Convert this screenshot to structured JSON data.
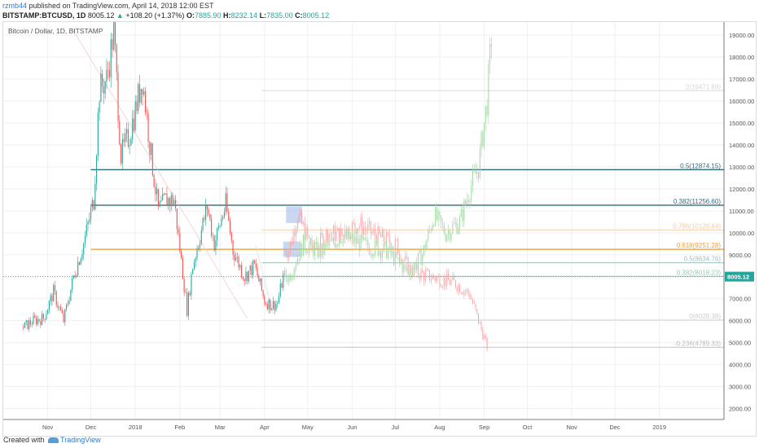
{
  "header": {
    "user": "rzmb44",
    "published_text": "published on TradingView.com, April 14, 2018 12:00 EST",
    "symbol": "BITSTAMP:BTCUSD, 1D",
    "last": "8005.12",
    "change_arrow": "▲",
    "change": "+108.20 (+1.37%)",
    "open_label": "O:",
    "open": "7885.90",
    "high_label": "H:",
    "high": "8232.14",
    "low_label": "L:",
    "low": "7835.00",
    "close_label": "C:",
    "close": "8005.12"
  },
  "footer": {
    "created_with": "Created with",
    "brand": "TradingView"
  },
  "colors": {
    "up": "#26a69a",
    "down": "#ef5350",
    "ghost_up": "#a5d6a7",
    "ghost_down": "#f8a5a8",
    "blue_line": "#2e6b80",
    "orange_line": "#f0a030",
    "price_tag": "#26a69a"
  },
  "chart_data": {
    "type": "candlestick",
    "title": "Bitcoin / Dollar, 1D, BITSTAMP",
    "ylim": [
      1500,
      19600
    ],
    "y_ticks": [
      "2000.00",
      "3000.00",
      "4000.00",
      "5000.00",
      "6000.00",
      "7000.00",
      "8000.00",
      "9000.00",
      "10000.00",
      "11000.00",
      "12000.00",
      "13000.00",
      "14000.00",
      "15000.00",
      "16000.00",
      "17000.00",
      "18000.00",
      "19000.00"
    ],
    "x_ticks": [
      "Nov",
      "Dec",
      "2018",
      "Feb",
      "Mar",
      "Apr",
      "May",
      "Jun",
      "Jul",
      "Aug",
      "Sep",
      "Oct",
      "Nov",
      "Dec",
      "2019"
    ],
    "last_price_tag": "8005.12",
    "price_series": [
      [
        "2017-10-15",
        5700
      ],
      [
        "2017-10-22",
        6000
      ],
      [
        "2017-10-29",
        6100
      ],
      [
        "2017-11-05",
        7300
      ],
      [
        "2017-11-12",
        6000
      ],
      [
        "2017-11-19",
        8000
      ],
      [
        "2017-11-26",
        9500
      ],
      [
        "2017-12-03",
        11500
      ],
      [
        "2017-12-07",
        16500
      ],
      [
        "2017-12-12",
        17000
      ],
      [
        "2017-12-17",
        19200
      ],
      [
        "2017-12-22",
        13500
      ],
      [
        "2017-12-28",
        14500
      ],
      [
        "2018-01-06",
        17000
      ],
      [
        "2018-01-12",
        13500
      ],
      [
        "2018-01-17",
        11000
      ],
      [
        "2018-01-22",
        11500
      ],
      [
        "2018-01-28",
        11500
      ],
      [
        "2018-02-06",
        6500
      ],
      [
        "2018-02-10",
        8500
      ],
      [
        "2018-02-20",
        11200
      ],
      [
        "2018-02-25",
        9500
      ],
      [
        "2018-03-05",
        11300
      ],
      [
        "2018-03-10",
        9200
      ],
      [
        "2018-03-18",
        8000
      ],
      [
        "2018-03-25",
        8500
      ],
      [
        "2018-04-01",
        6900
      ],
      [
        "2018-04-06",
        6700
      ],
      [
        "2018-04-10",
        6800
      ],
      [
        "2018-04-14",
        8005.12
      ]
    ],
    "projection_down": [
      [
        "2018-04-18",
        9200
      ],
      [
        "2018-04-24",
        10800
      ],
      [
        "2018-05-05",
        9200
      ],
      [
        "2018-05-15",
        10000
      ],
      [
        "2018-05-25",
        9900
      ],
      [
        "2018-06-05",
        10400
      ],
      [
        "2018-06-20",
        9800
      ],
      [
        "2018-07-01",
        9500
      ],
      [
        "2018-07-10",
        8400
      ],
      [
        "2018-07-20",
        8100
      ],
      [
        "2018-08-01",
        7900
      ],
      [
        "2018-08-12",
        7700
      ],
      [
        "2018-08-22",
        7200
      ],
      [
        "2018-08-30",
        5600
      ],
      [
        "2018-09-03",
        4800
      ]
    ],
    "projection_up": [
      [
        "2018-04-18",
        8000
      ],
      [
        "2018-04-28",
        9500
      ],
      [
        "2018-05-10",
        9100
      ],
      [
        "2018-05-25",
        9900
      ],
      [
        "2018-06-10",
        9400
      ],
      [
        "2018-06-25",
        9200
      ],
      [
        "2018-07-10",
        8200
      ],
      [
        "2018-07-20",
        9000
      ],
      [
        "2018-07-28",
        10800
      ],
      [
        "2018-08-05",
        10000
      ],
      [
        "2018-08-15",
        10500
      ],
      [
        "2018-08-22",
        12000
      ],
      [
        "2018-08-28",
        13000
      ],
      [
        "2018-09-03",
        16000
      ],
      [
        "2018-09-06",
        18900
      ]
    ],
    "fib_levels": [
      {
        "label": "2(16471.89)",
        "price": 16471.89,
        "color": "#d5d5d5"
      },
      {
        "label": "0.5(12874.15)",
        "price": 12874.15,
        "color": "#2e6b80"
      },
      {
        "label": "0.382(11256.60)",
        "price": 11256.6,
        "color": "#2e6b80"
      },
      {
        "label": "0.786(10129.84)",
        "price": 10129.84,
        "color": "#f5c9a0"
      },
      {
        "label": "0.618(9251.28)",
        "price": 9251.28,
        "color": "#f0a030"
      },
      {
        "label": "0.5(8634.76)",
        "price": 8634.76,
        "color": "#9bbfb8"
      },
      {
        "label": "0.382(8018.23)",
        "price": 8018.23,
        "color": "#9bc9b0"
      },
      {
        "label": "0(6028.38)",
        "price": 6028.38,
        "color": "#cccccc"
      },
      {
        "label": "-0.236(4789.33)",
        "price": 4789.33,
        "color": "#bbbbbb"
      }
    ]
  }
}
